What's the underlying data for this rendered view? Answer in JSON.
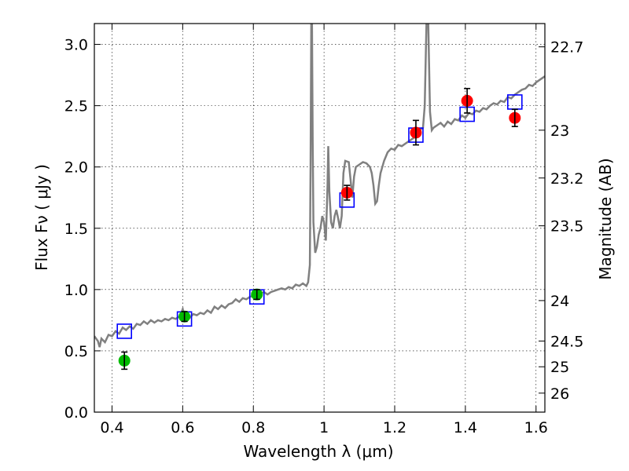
{
  "chart_data": {
    "type": "scatter",
    "xlabel": "Wavelength  λ (μm)",
    "ylabel": "Flux  Fν  ( μJy )",
    "y2label": "Magnitude (AB)",
    "xlim": [
      0.35,
      1.625
    ],
    "ylim": [
      0,
      3.17
    ],
    "x_ticks": [
      0.4,
      0.6,
      0.8,
      1.0,
      1.2,
      1.4,
      1.6
    ],
    "x_tick_labels": [
      "0.4",
      "0.6",
      "0.8",
      "1",
      "1.2",
      "1.4",
      "1.6"
    ],
    "y_ticks": [
      0,
      0.5,
      1.0,
      1.5,
      2.0,
      2.5,
      3.0
    ],
    "y_tick_labels": [
      "0.0",
      "0.5",
      "1.0",
      "1.5",
      "2.0",
      "2.5",
      "3.0"
    ],
    "y2_ticks": [
      {
        "flux": 2.98,
        "label": "22.7"
      },
      {
        "flux": 2.3,
        "label": "23"
      },
      {
        "flux": 1.91,
        "label": "23.2"
      },
      {
        "flux": 1.52,
        "label": "23.5"
      },
      {
        "flux": 0.91,
        "label": "24"
      },
      {
        "flux": 0.58,
        "label": "24.5"
      },
      {
        "flux": 0.37,
        "label": "25"
      },
      {
        "flux": 0.155,
        "label": "26"
      }
    ],
    "grid": true,
    "colors": {
      "spectrum": "#808080",
      "model_marker": "#0000ff",
      "obs_blue": "#00bb00",
      "obs_red": "#ff0000",
      "error_bar": "#000000"
    },
    "series": [
      {
        "style": "line",
        "points": [
          [
            0.35,
            0.62
          ],
          [
            0.36,
            0.58
          ],
          [
            0.365,
            0.53
          ],
          [
            0.37,
            0.6
          ],
          [
            0.38,
            0.57
          ],
          [
            0.39,
            0.63
          ],
          [
            0.4,
            0.62
          ],
          [
            0.41,
            0.66
          ],
          [
            0.42,
            0.64
          ],
          [
            0.43,
            0.69
          ],
          [
            0.44,
            0.67
          ],
          [
            0.45,
            0.7
          ],
          [
            0.46,
            0.68
          ],
          [
            0.47,
            0.72
          ],
          [
            0.48,
            0.71
          ],
          [
            0.49,
            0.74
          ],
          [
            0.5,
            0.72
          ],
          [
            0.51,
            0.75
          ],
          [
            0.52,
            0.73
          ],
          [
            0.53,
            0.75
          ],
          [
            0.54,
            0.74
          ],
          [
            0.55,
            0.76
          ],
          [
            0.56,
            0.75
          ],
          [
            0.57,
            0.77
          ],
          [
            0.58,
            0.76
          ],
          [
            0.59,
            0.78
          ],
          [
            0.595,
            0.8
          ],
          [
            0.6,
            0.84
          ],
          [
            0.605,
            0.78
          ],
          [
            0.61,
            0.79
          ],
          [
            0.62,
            0.77
          ],
          [
            0.63,
            0.8
          ],
          [
            0.64,
            0.79
          ],
          [
            0.65,
            0.81
          ],
          [
            0.66,
            0.8
          ],
          [
            0.67,
            0.83
          ],
          [
            0.68,
            0.81
          ],
          [
            0.69,
            0.86
          ],
          [
            0.7,
            0.84
          ],
          [
            0.71,
            0.87
          ],
          [
            0.72,
            0.85
          ],
          [
            0.73,
            0.88
          ],
          [
            0.74,
            0.89
          ],
          [
            0.75,
            0.92
          ],
          [
            0.76,
            0.9
          ],
          [
            0.77,
            0.93
          ],
          [
            0.78,
            0.92
          ],
          [
            0.79,
            0.94
          ],
          [
            0.8,
            0.95
          ],
          [
            0.81,
            0.96
          ],
          [
            0.82,
            0.97
          ],
          [
            0.83,
            0.98
          ],
          [
            0.84,
            0.96
          ],
          [
            0.85,
            0.98
          ],
          [
            0.86,
            0.99
          ],
          [
            0.87,
            1.0
          ],
          [
            0.88,
            1.01
          ],
          [
            0.89,
            1.0
          ],
          [
            0.9,
            1.02
          ],
          [
            0.91,
            1.01
          ],
          [
            0.92,
            1.04
          ],
          [
            0.93,
            1.03
          ],
          [
            0.94,
            1.05
          ],
          [
            0.95,
            1.03
          ],
          [
            0.955,
            1.06
          ],
          [
            0.96,
            1.2
          ],
          [
            0.962,
            2.0
          ],
          [
            0.964,
            3.17
          ],
          [
            0.966,
            3.17
          ],
          [
            0.968,
            2.2
          ],
          [
            0.97,
            1.55
          ],
          [
            0.975,
            1.3
          ],
          [
            0.98,
            1.35
          ],
          [
            0.985,
            1.45
          ],
          [
            0.99,
            1.5
          ],
          [
            0.995,
            1.6
          ],
          [
            1.0,
            1.55
          ],
          [
            1.005,
            1.4
          ],
          [
            1.01,
            1.85
          ],
          [
            1.012,
            2.17
          ],
          [
            1.015,
            1.8
          ],
          [
            1.02,
            1.55
          ],
          [
            1.025,
            1.5
          ],
          [
            1.03,
            1.6
          ],
          [
            1.035,
            1.65
          ],
          [
            1.04,
            1.58
          ],
          [
            1.045,
            1.5
          ],
          [
            1.05,
            1.6
          ],
          [
            1.055,
            1.95
          ],
          [
            1.06,
            2.05
          ],
          [
            1.07,
            2.04
          ],
          [
            1.075,
            1.9
          ],
          [
            1.08,
            1.75
          ],
          [
            1.085,
            1.92
          ],
          [
            1.09,
            2.0
          ],
          [
            1.1,
            2.02
          ],
          [
            1.11,
            2.04
          ],
          [
            1.12,
            2.03
          ],
          [
            1.13,
            2.0
          ],
          [
            1.135,
            1.95
          ],
          [
            1.14,
            1.85
          ],
          [
            1.145,
            1.7
          ],
          [
            1.15,
            1.72
          ],
          [
            1.155,
            1.85
          ],
          [
            1.16,
            1.95
          ],
          [
            1.17,
            2.05
          ],
          [
            1.18,
            2.12
          ],
          [
            1.19,
            2.15
          ],
          [
            1.2,
            2.14
          ],
          [
            1.21,
            2.18
          ],
          [
            1.22,
            2.17
          ],
          [
            1.23,
            2.19
          ],
          [
            1.24,
            2.21
          ],
          [
            1.25,
            2.23
          ],
          [
            1.26,
            2.25
          ],
          [
            1.27,
            2.3
          ],
          [
            1.28,
            2.32
          ],
          [
            1.285,
            2.5
          ],
          [
            1.29,
            3.17
          ],
          [
            1.295,
            3.17
          ],
          [
            1.3,
            2.45
          ],
          [
            1.305,
            2.3
          ],
          [
            1.31,
            2.32
          ],
          [
            1.32,
            2.34
          ],
          [
            1.33,
            2.36
          ],
          [
            1.34,
            2.33
          ],
          [
            1.35,
            2.37
          ],
          [
            1.36,
            2.35
          ],
          [
            1.37,
            2.39
          ],
          [
            1.38,
            2.38
          ],
          [
            1.39,
            2.42
          ],
          [
            1.4,
            2.4
          ],
          [
            1.41,
            2.44
          ],
          [
            1.42,
            2.43
          ],
          [
            1.43,
            2.46
          ],
          [
            1.44,
            2.45
          ],
          [
            1.45,
            2.48
          ],
          [
            1.46,
            2.47
          ],
          [
            1.47,
            2.5
          ],
          [
            1.48,
            2.52
          ],
          [
            1.49,
            2.51
          ],
          [
            1.5,
            2.54
          ],
          [
            1.51,
            2.53
          ],
          [
            1.52,
            2.57
          ],
          [
            1.53,
            2.56
          ],
          [
            1.54,
            2.59
          ],
          [
            1.55,
            2.61
          ],
          [
            1.56,
            2.63
          ],
          [
            1.57,
            2.64
          ],
          [
            1.58,
            2.67
          ],
          [
            1.59,
            2.66
          ],
          [
            1.6,
            2.69
          ],
          [
            1.61,
            2.71
          ],
          [
            1.62,
            2.73
          ],
          [
            1.625,
            2.74
          ]
        ]
      },
      {
        "style": "open-square",
        "points": [
          [
            0.435,
            0.66
          ],
          [
            0.605,
            0.76
          ],
          [
            0.81,
            0.94
          ],
          [
            1.065,
            1.73
          ],
          [
            1.26,
            2.26
          ],
          [
            1.405,
            2.43
          ],
          [
            1.54,
            2.53
          ]
        ]
      },
      {
        "style": "filled-circle",
        "points": [
          {
            "x": 0.435,
            "y": 0.42,
            "err": 0.07,
            "color": "green"
          },
          {
            "x": 0.605,
            "y": 0.78,
            "err": 0.04,
            "color": "green"
          },
          {
            "x": 0.81,
            "y": 0.96,
            "err": 0.04,
            "color": "green"
          },
          {
            "x": 1.065,
            "y": 1.79,
            "err": 0.06,
            "color": "red"
          },
          {
            "x": 1.26,
            "y": 2.28,
            "err": 0.1,
            "color": "red"
          },
          {
            "x": 1.405,
            "y": 2.54,
            "err": 0.1,
            "color": "red"
          },
          {
            "x": 1.54,
            "y": 2.4,
            "err": 0.07,
            "color": "red"
          }
        ]
      }
    ]
  }
}
